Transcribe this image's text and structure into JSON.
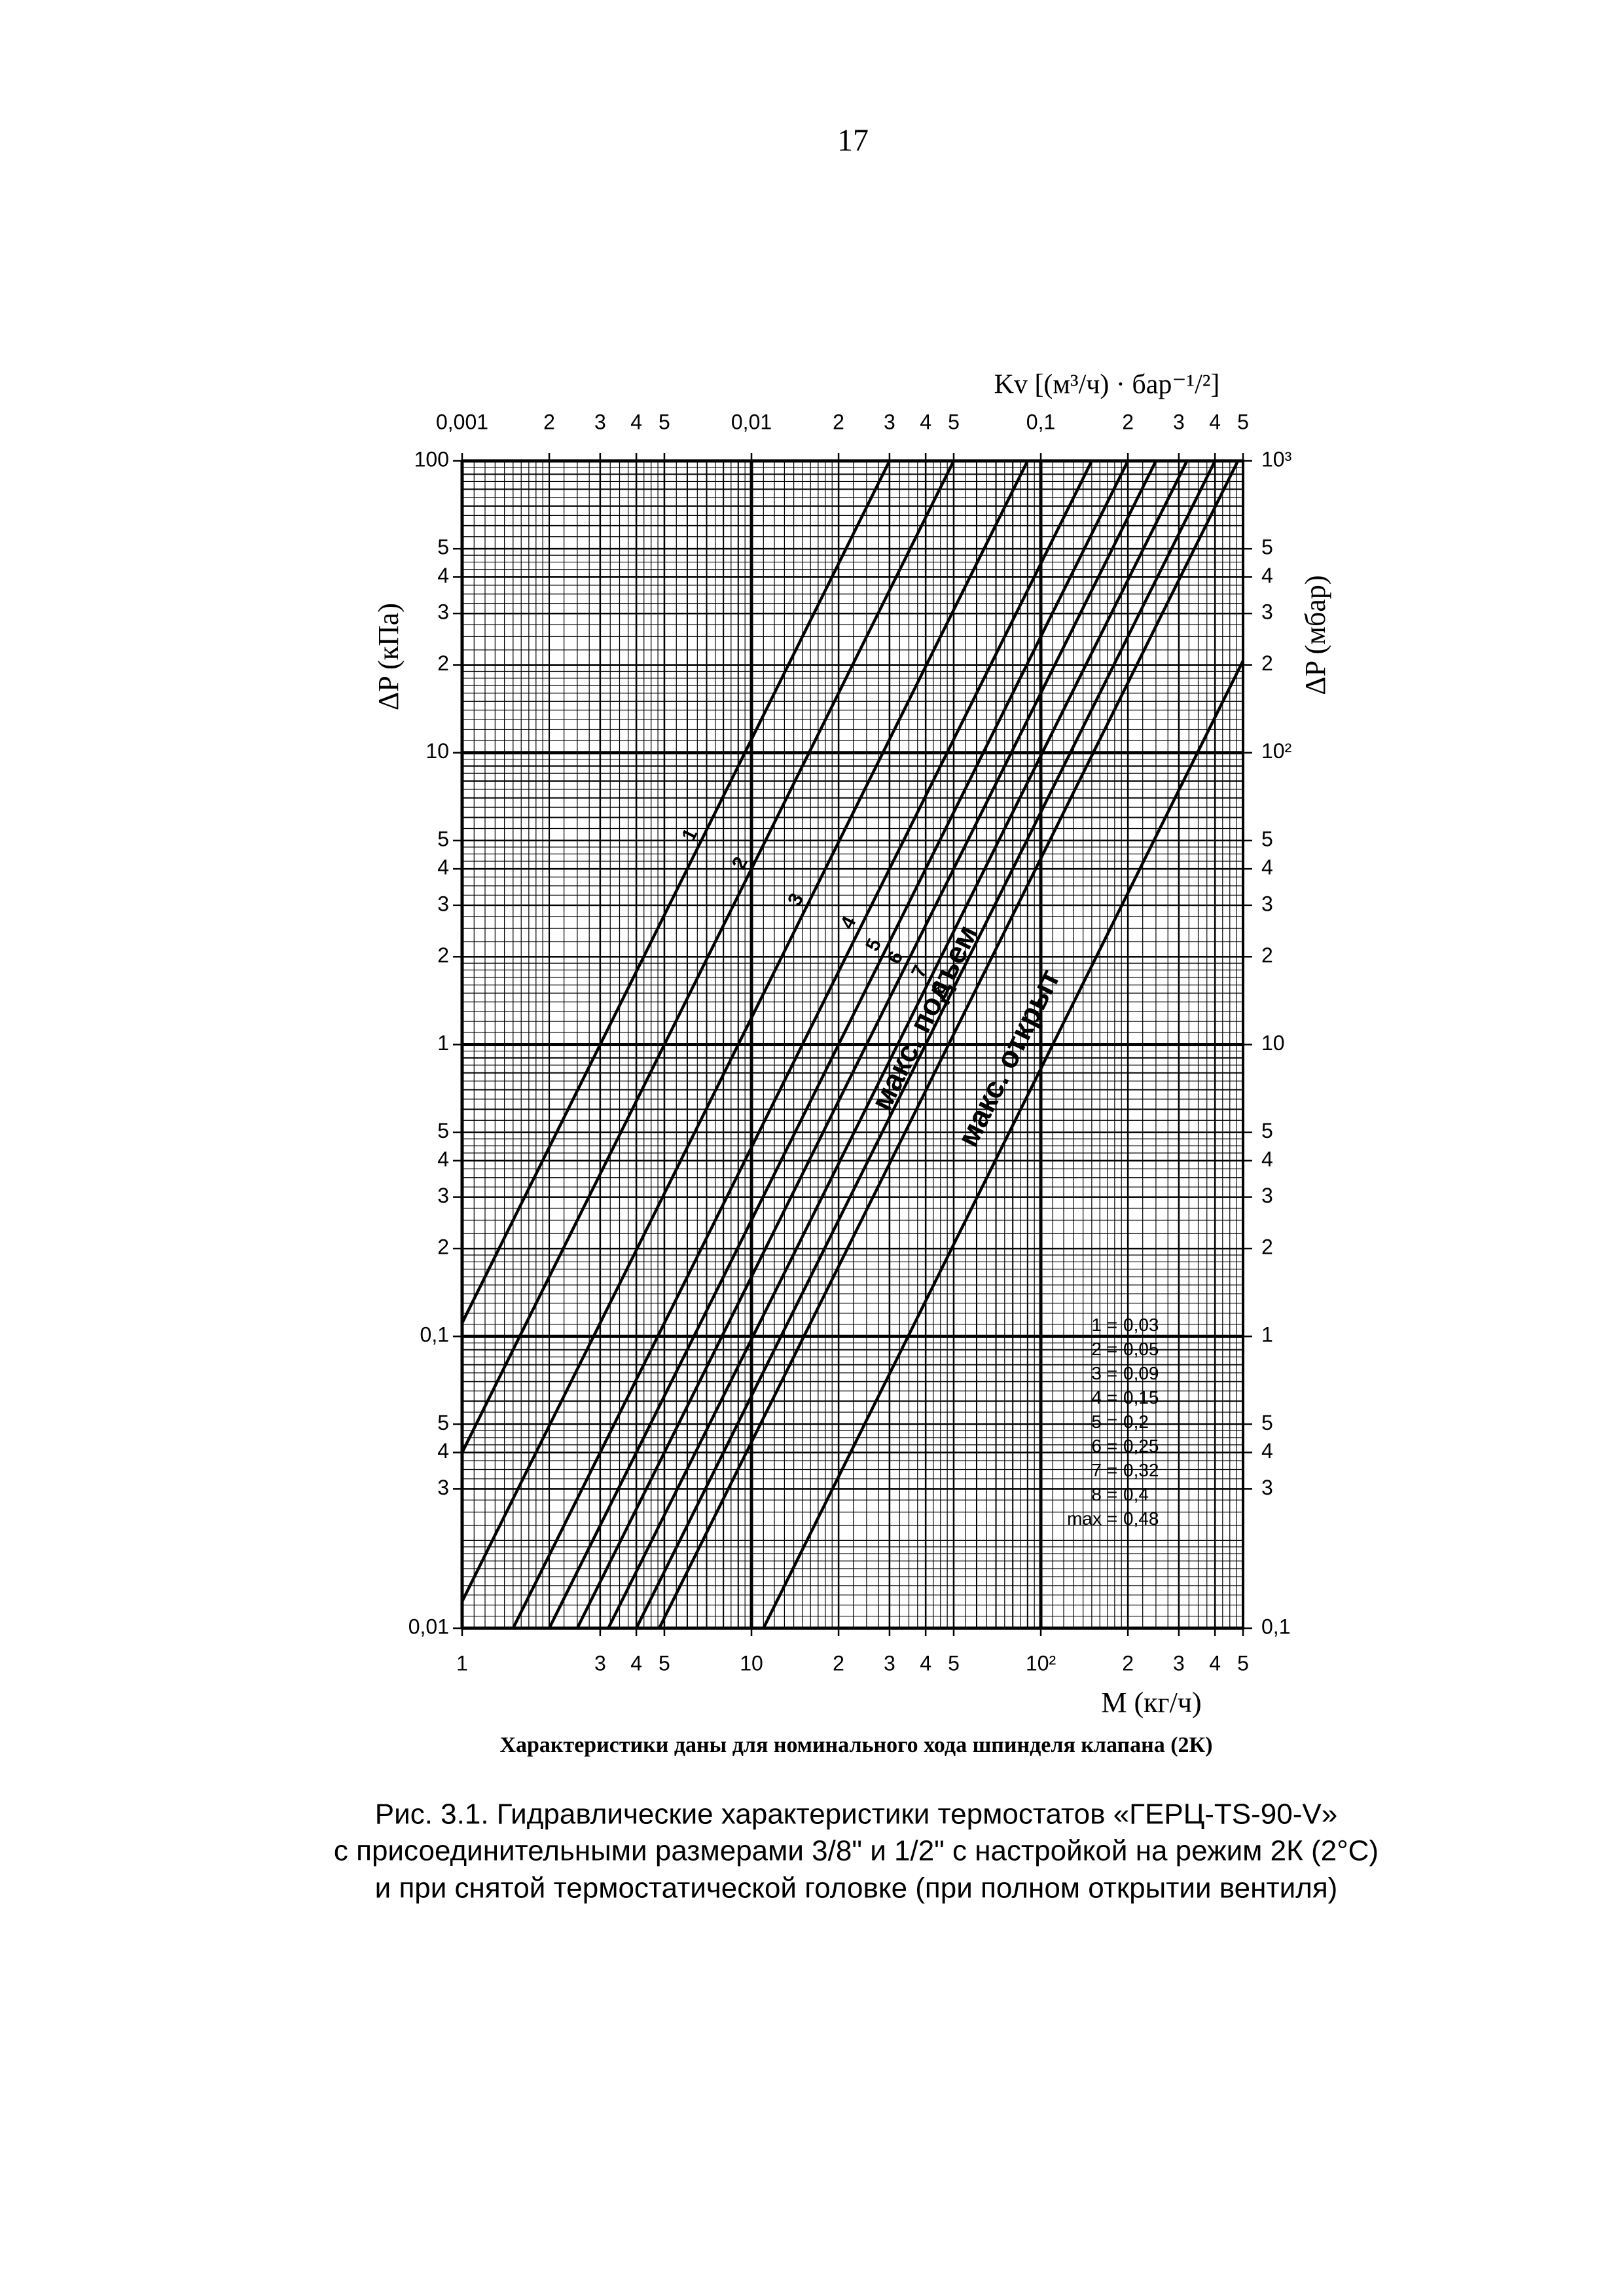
{
  "page_number": "17",
  "chart_data": {
    "type": "line",
    "x_label": "M (кг/ч)",
    "y_label": "ΔP (кПа)",
    "x2_label": "Kv [(м³/ч) · бар⁻¹/²]",
    "y2_label": "ΔP (мбар)",
    "x_scale": "log",
    "y_scale": "log",
    "xlim": [
      1,
      500
    ],
    "ylim": [
      0.01,
      100
    ],
    "x2lim": [
      0.001,
      0.5
    ],
    "y2lim": [
      0.1,
      1000
    ],
    "xticks": [
      1,
      3,
      4,
      5,
      10,
      {
        "value": 20,
        "label": "2"
      },
      {
        "value": 30,
        "label": "3"
      },
      {
        "value": 40,
        "label": "4"
      },
      {
        "value": 50,
        "label": "5"
      },
      {
        "value": 100,
        "label": "10²"
      },
      {
        "value": 200,
        "label": "2"
      },
      {
        "value": 300,
        "label": "3"
      },
      {
        "value": 400,
        "label": "4"
      },
      {
        "value": 500,
        "label": "5"
      }
    ],
    "yticks": [
      100,
      {
        "value": 50,
        "label": "5"
      },
      {
        "value": 40,
        "label": "4"
      },
      {
        "value": 30,
        "label": "3"
      },
      {
        "value": 20,
        "label": "2"
      },
      10,
      5,
      4,
      3,
      2,
      1,
      {
        "value": 0.5,
        "label": "5"
      },
      {
        "value": 0.4,
        "label": "4"
      },
      {
        "value": 0.3,
        "label": "3"
      },
      {
        "value": 0.2,
        "label": "2"
      },
      {
        "value": 0.1,
        "label": "0,1"
      },
      {
        "value": 0.05,
        "label": "5"
      },
      {
        "value": 0.04,
        "label": "4"
      },
      {
        "value": 0.03,
        "label": "3"
      },
      {
        "value": 0.01,
        "label": "0,01"
      }
    ],
    "x2ticks": [
      {
        "value": 0.001,
        "label": "0,001"
      },
      {
        "value": 0.002,
        "label": "2"
      },
      {
        "value": 0.003,
        "label": "3"
      },
      {
        "value": 0.004,
        "label": "4"
      },
      {
        "value": 0.005,
        "label": "5"
      },
      {
        "value": 0.01,
        "label": "0,01"
      },
      {
        "value": 0.02,
        "label": "2"
      },
      {
        "value": 0.03,
        "label": "3"
      },
      {
        "value": 0.04,
        "label": "4"
      },
      {
        "value": 0.05,
        "label": "5"
      },
      {
        "value": 0.1,
        "label": "0,1"
      },
      {
        "value": 0.2,
        "label": "2"
      },
      {
        "value": 0.3,
        "label": "3"
      },
      {
        "value": 0.4,
        "label": "4"
      },
      {
        "value": 0.5,
        "label": "5"
      }
    ],
    "y2ticks": [
      {
        "value": 1000,
        "label": "10³"
      },
      {
        "value": 500,
        "label": "5"
      },
      {
        "value": 400,
        "label": "4"
      },
      {
        "value": 300,
        "label": "3"
      },
      {
        "value": 200,
        "label": "2"
      },
      {
        "value": 100,
        "label": "10²"
      },
      {
        "value": 50,
        "label": "5"
      },
      {
        "value": 40,
        "label": "4"
      },
      {
        "value": 30,
        "label": "3"
      },
      {
        "value": 20,
        "label": "2"
      },
      10,
      5,
      4,
      3,
      2,
      1,
      {
        "value": 0.5,
        "label": "5"
      },
      {
        "value": 0.4,
        "label": "4"
      },
      {
        "value": 0.3,
        "label": "3"
      },
      {
        "value": 0.1,
        "label": "0,1"
      }
    ],
    "grid": true,
    "line_color": "#000000",
    "series": [
      {
        "name": "1",
        "values": [
          0.03
        ],
        "value_labels": [
          "0,03"
        ]
      },
      {
        "name": "2",
        "values": [
          0.05
        ],
        "value_labels": [
          "0,05"
        ]
      },
      {
        "name": "3",
        "values": [
          0.09
        ],
        "value_labels": [
          "0,09"
        ]
      },
      {
        "name": "4",
        "values": [
          0.15
        ],
        "value_labels": [
          "0,15"
        ]
      },
      {
        "name": "5",
        "values": [
          0.2
        ],
        "value_labels": [
          "0,2"
        ]
      },
      {
        "name": "6",
        "values": [
          0.25
        ],
        "value_labels": [
          "0,25"
        ]
      },
      {
        "name": "7",
        "values": [
          0.32
        ],
        "value_labels": [
          "0,32"
        ]
      },
      {
        "name": "8",
        "values": [
          0.4
        ],
        "value_labels": [
          "0,4"
        ]
      },
      {
        "name": "max",
        "line_label": "макс. подъем",
        "values": [
          0.48
        ],
        "value_labels": [
          "0,48"
        ]
      },
      {
        "line_label": "макс. открыт",
        "values": [
          1.1
        ]
      }
    ],
    "legend_separator": "=",
    "note": "Характеристики даны для номинального хода шпинделя клапана (2К)"
  },
  "caption": [
    "Рис. 3.1. Гидравлические характеристики термостатов «ГЕРЦ-TS-90-V»",
    "с присоединительными размерами 3/8\" и 1/2\" с настройкой на режим 2К (2°C)",
    "и при снятой термостатической головке (при полном открытии вентиля)"
  ]
}
